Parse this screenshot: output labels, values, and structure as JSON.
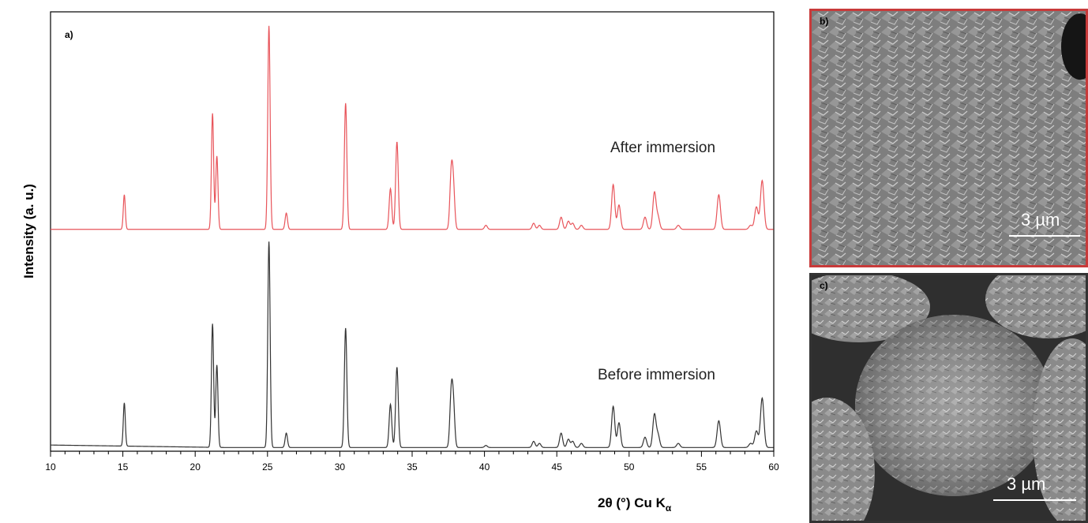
{
  "chart_data": {
    "type": "line",
    "panel_label": "a)",
    "ylabel": "Intensity (a. u.)",
    "xlabel_prefix": "2θ (°) Cu K",
    "xlabel_subscript": "α",
    "xlim": [
      10,
      60
    ],
    "xticks": [
      10,
      15,
      20,
      25,
      30,
      35,
      40,
      45,
      50,
      55,
      60
    ],
    "legend_placement": "inline labels to the right of each trace",
    "series": [
      {
        "name": "After immersion",
        "color": "#e8545a",
        "peaks": [
          [
            15.1,
            0.17
          ],
          [
            21.2,
            0.57
          ],
          [
            21.5,
            0.36
          ],
          [
            25.1,
            1.0
          ],
          [
            26.3,
            0.08
          ],
          [
            30.4,
            0.62
          ],
          [
            33.5,
            0.2
          ],
          [
            33.95,
            0.43
          ],
          [
            37.7,
            0.26
          ],
          [
            37.85,
            0.2
          ],
          [
            40.1,
            0.02
          ],
          [
            43.4,
            0.03
          ],
          [
            43.8,
            0.02
          ],
          [
            45.3,
            0.06
          ],
          [
            45.8,
            0.04
          ],
          [
            46.1,
            0.03
          ],
          [
            46.7,
            0.02
          ],
          [
            48.9,
            0.22
          ],
          [
            49.3,
            0.12
          ],
          [
            51.1,
            0.06
          ],
          [
            51.75,
            0.18
          ],
          [
            52.0,
            0.06
          ],
          [
            53.4,
            0.02
          ],
          [
            56.2,
            0.17
          ],
          [
            58.4,
            0.02
          ],
          [
            58.8,
            0.11
          ],
          [
            59.2,
            0.24
          ]
        ]
      },
      {
        "name": "Before immersion",
        "color": "#333333",
        "peaks": [
          [
            15.1,
            0.21
          ],
          [
            21.2,
            0.6
          ],
          [
            21.5,
            0.4
          ],
          [
            25.1,
            1.0
          ],
          [
            26.3,
            0.07
          ],
          [
            30.4,
            0.58
          ],
          [
            33.5,
            0.21
          ],
          [
            33.95,
            0.39
          ],
          [
            37.7,
            0.25
          ],
          [
            37.85,
            0.2
          ],
          [
            40.1,
            0.01
          ],
          [
            43.4,
            0.03
          ],
          [
            43.8,
            0.02
          ],
          [
            45.3,
            0.07
          ],
          [
            45.8,
            0.04
          ],
          [
            46.1,
            0.03
          ],
          [
            46.7,
            0.02
          ],
          [
            48.9,
            0.2
          ],
          [
            49.3,
            0.12
          ],
          [
            51.1,
            0.05
          ],
          [
            51.75,
            0.16
          ],
          [
            52.0,
            0.06
          ],
          [
            53.4,
            0.02
          ],
          [
            56.2,
            0.13
          ],
          [
            58.4,
            0.02
          ],
          [
            58.8,
            0.08
          ],
          [
            59.2,
            0.24
          ]
        ]
      }
    ]
  },
  "images": [
    {
      "label": "b)",
      "scale_bar": "3 µm",
      "frame_color": "#c83a3a"
    },
    {
      "label": "c)",
      "scale_bar": "3 µm",
      "frame_color": "#333333"
    }
  ]
}
